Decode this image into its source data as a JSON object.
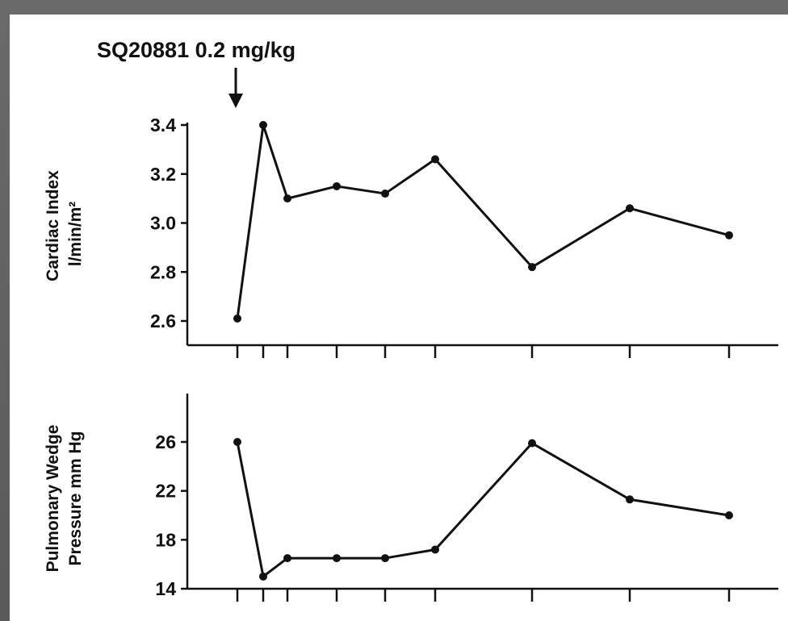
{
  "annotation": {
    "text": "SQ20881 0.2 mg/kg"
  },
  "chart_data": [
    {
      "type": "line",
      "ylabel_line1": "Cardiac Index",
      "ylabel_line2": "l/min/m²",
      "ylim": [
        2.5,
        3.5
      ],
      "yticks": [
        "3.4",
        "3.2",
        "3.0",
        "2.8",
        "2.6"
      ],
      "ytick_values": [
        3.4,
        3.2,
        3.0,
        2.8,
        2.6
      ],
      "x": [
        0,
        1,
        2,
        4,
        6,
        8,
        12,
        16,
        20
      ],
      "values": [
        2.61,
        3.4,
        3.1,
        3.15,
        3.12,
        3.26,
        2.82,
        3.06,
        2.95
      ],
      "grid": false
    },
    {
      "type": "line",
      "ylabel_line1": "Pulmonary Wedge",
      "ylabel_line2": "Pressure mm Hg",
      "ylim": [
        14,
        30
      ],
      "yticks": [
        "26",
        "22",
        "18",
        "14"
      ],
      "ytick_values": [
        26,
        22,
        18,
        14
      ],
      "x": [
        0,
        1,
        2,
        4,
        6,
        8,
        12,
        16,
        20
      ],
      "values": [
        26.0,
        15.0,
        16.5,
        16.5,
        16.5,
        17.2,
        25.9,
        21.3,
        20.0
      ],
      "grid": false
    }
  ]
}
